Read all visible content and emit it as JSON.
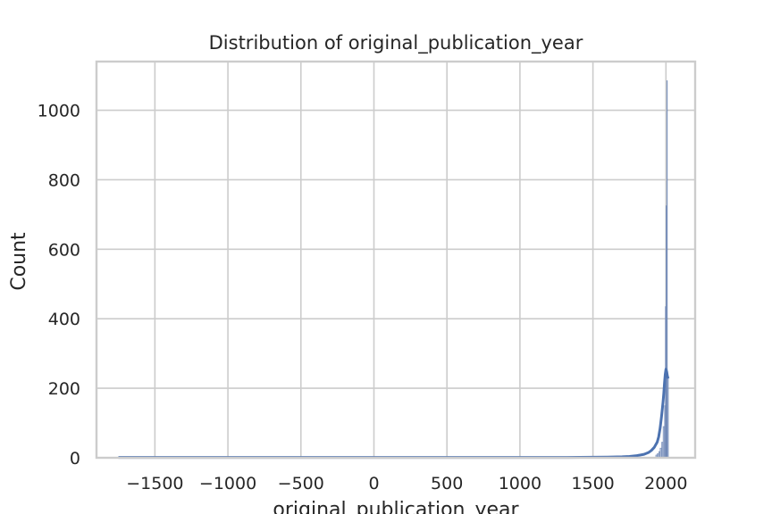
{
  "chart_data": {
    "type": "histogram",
    "title": "Distribution of original_publication_year",
    "xlabel": "original_publication_year",
    "ylabel": "Count",
    "xlim": [
      -1900,
      2200
    ],
    "ylim": [
      0,
      1140
    ],
    "xticks": [
      -1500,
      -1000,
      -500,
      0,
      500,
      1000,
      1500,
      2000
    ],
    "xtick_labels": [
      "−1500",
      "−1000",
      "−500",
      "0",
      "500",
      "1000",
      "1500",
      "2000"
    ],
    "yticks": [
      0,
      200,
      400,
      600,
      800,
      1000
    ],
    "ytick_labels": [
      "0",
      "200",
      "400",
      "600",
      "800",
      "1000"
    ],
    "grid": true,
    "colors": {
      "bars": "#8fa3c8",
      "bar_edge": "#5a76ab",
      "kde": "#4c72b0",
      "grid": "#cccccc",
      "spine": "#cccccc"
    },
    "bars": [
      {
        "x0": 1930,
        "x1": 1940,
        "count": 8
      },
      {
        "x0": 1940,
        "x1": 1950,
        "count": 12
      },
      {
        "x0": 1950,
        "x1": 1960,
        "count": 18
      },
      {
        "x0": 1960,
        "x1": 1970,
        "count": 28
      },
      {
        "x0": 1970,
        "x1": 1980,
        "count": 45
      },
      {
        "x0": 1980,
        "x1": 1990,
        "count": 90
      },
      {
        "x0": 1990,
        "x1": 1995,
        "count": 150
      },
      {
        "x0": 1995,
        "x1": 2000,
        "count": 435
      },
      {
        "x0": 2000,
        "x1": 2005,
        "count": 725
      },
      {
        "x0": 2005,
        "x1": 2010,
        "count": 1085
      },
      {
        "x0": 2010,
        "x1": 2017,
        "count": 230
      }
    ],
    "kde": {
      "x": [
        -1750,
        -500,
        0,
        500,
        1000,
        1300,
        1500,
        1600,
        1700,
        1750,
        1800,
        1850,
        1880,
        1900,
        1920,
        1940,
        1950,
        1960,
        1970,
        1980,
        1985,
        1990,
        1995,
        2000,
        2005,
        2010,
        2015
      ],
      "y": [
        1,
        1,
        1,
        1,
        1,
        1,
        1.5,
        2,
        3,
        4,
        6,
        10,
        15,
        21,
        30,
        45,
        60,
        85,
        120,
        160,
        185,
        215,
        240,
        255,
        248,
        235,
        228
      ]
    }
  }
}
